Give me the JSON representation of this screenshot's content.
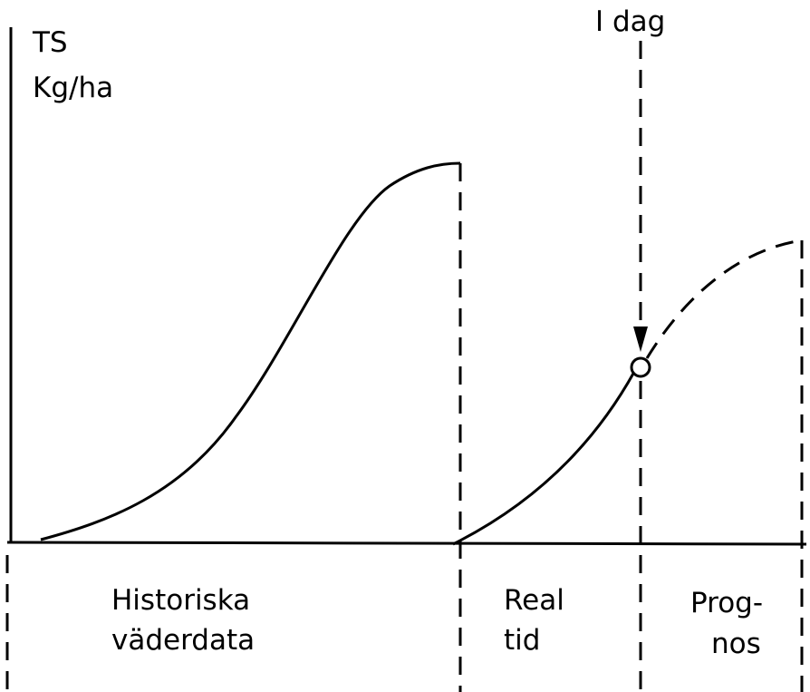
{
  "axis_label": {
    "line1": "TS",
    "line2": "Kg/ha"
  },
  "marker_label": "I dag",
  "phases": [
    {
      "line1": "Historiska",
      "line2": "väderdata"
    },
    {
      "line1": "Real",
      "line2": "tid"
    },
    {
      "line1": "Prog-",
      "line2": "nos"
    }
  ]
}
